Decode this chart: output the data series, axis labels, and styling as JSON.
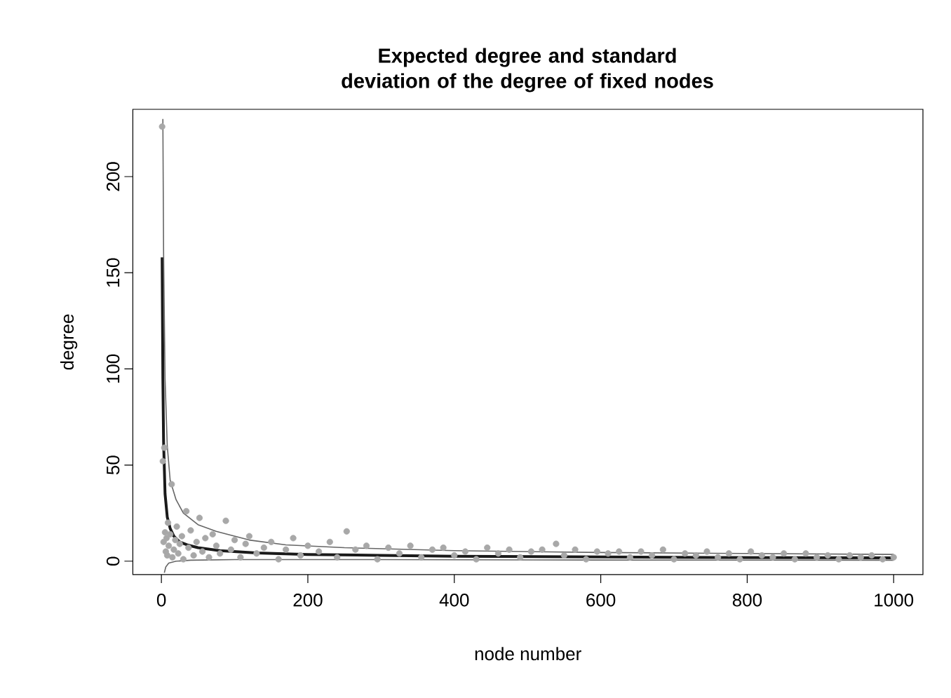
{
  "chart_data": {
    "type": "scatter",
    "title": "Expected degree and standard deviation of the degree of fixed nodes",
    "xlabel": "node number",
    "ylabel": "degree",
    "xlim": [
      -39,
      1040
    ],
    "ylim": [
      -7,
      235
    ],
    "xticks": [
      0,
      200,
      400,
      600,
      800,
      1000
    ],
    "yticks": [
      0,
      50,
      100,
      150,
      200
    ],
    "grid": false,
    "series": [
      {
        "marker": "circle",
        "color": "#a8a8a8",
        "x": [
          1,
          2,
          3,
          4,
          5,
          6,
          7,
          8,
          9,
          10,
          12,
          14,
          15,
          17,
          19,
          21,
          23,
          25,
          28,
          30,
          34,
          37,
          40,
          44,
          48,
          52,
          56,
          60,
          65,
          70,
          75,
          80,
          88,
          95,
          100,
          108,
          115,
          120,
          130,
          140,
          150,
          160,
          170,
          180,
          190,
          200,
          215,
          230,
          240,
          253,
          265,
          280,
          295,
          310,
          325,
          340,
          355,
          370,
          385,
          400,
          415,
          430,
          445,
          460,
          475,
          490,
          505,
          520,
          539,
          550,
          565,
          580,
          595,
          610,
          625,
          640,
          655,
          670,
          685,
          700,
          715,
          730,
          745,
          760,
          775,
          790,
          805,
          820,
          835,
          850,
          865,
          880,
          895,
          910,
          925,
          940,
          955,
          970,
          985,
          1000
        ],
        "values": [
          226,
          52,
          10,
          59,
          15,
          5,
          12,
          3,
          20,
          8,
          14,
          40,
          2,
          6,
          11,
          18,
          4,
          9,
          13,
          1,
          26,
          7,
          16,
          3,
          10,
          22.5,
          5,
          12,
          2,
          14,
          8,
          4,
          21,
          6,
          11,
          2,
          9,
          13,
          4,
          7,
          10,
          1,
          6,
          12,
          3,
          8,
          5,
          10,
          2,
          15.5,
          6,
          8,
          1,
          7,
          4,
          8,
          2,
          6,
          7,
          3,
          5,
          1,
          7,
          4,
          6,
          2,
          5,
          6,
          9,
          3,
          6,
          1,
          5,
          4,
          5,
          2,
          5,
          3,
          6,
          1,
          4,
          3,
          5,
          2,
          4,
          1,
          5,
          3,
          2,
          4,
          1,
          4,
          2,
          3,
          1,
          3,
          2,
          3,
          1,
          2
        ]
      },
      {
        "type": "line",
        "color": "#1a1a1a",
        "x": [
          1,
          2,
          3,
          5,
          8,
          12,
          17,
          25,
          35,
          50,
          80,
          130,
          200,
          300,
          400,
          500,
          600,
          700,
          800,
          900,
          1000
        ],
        "values": [
          158,
          95,
          62,
          35,
          23,
          17,
          13,
          10,
          8.5,
          7,
          5.5,
          4.3,
          3.5,
          3,
          2.6,
          2.4,
          2.2,
          2,
          1.9,
          1.8,
          1.7
        ]
      },
      {
        "type": "line",
        "color": "#666666",
        "x": [
          2,
          3,
          5,
          8,
          12,
          20,
          30,
          50,
          75,
          120,
          170,
          250,
          400,
          600,
          800,
          1000
        ],
        "values": [
          230,
          160,
          95,
          60,
          42,
          32,
          25,
          19,
          15.5,
          11,
          8.5,
          7,
          5.5,
          4.5,
          4,
          3.5
        ]
      },
      {
        "type": "line",
        "color": "#666666",
        "x": [
          4,
          6,
          10,
          20,
          40,
          100,
          300,
          600,
          1000
        ],
        "values": [
          -6,
          -3,
          -1,
          0,
          0.5,
          0.8,
          0.8,
          0.6,
          0.5
        ]
      }
    ]
  }
}
